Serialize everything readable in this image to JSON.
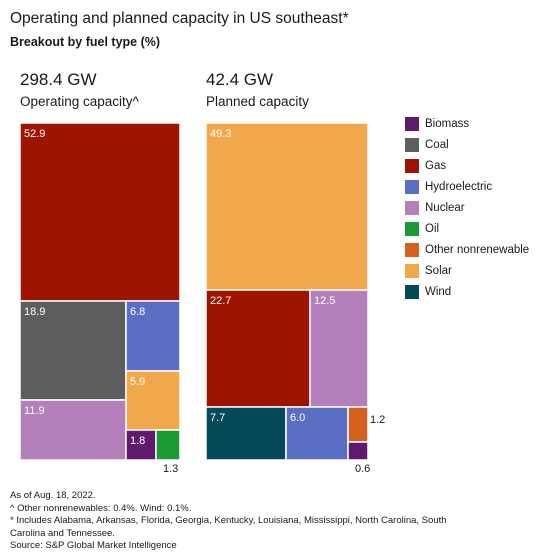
{
  "title": "Operating and planned capacity in US southeast*",
  "subtitle": "Breakout by fuel type (%)",
  "colors": {
    "Biomass": "#5f1a6e",
    "Coal": "#5e5e5e",
    "Gas": "#9e1400",
    "Hydroelectric": "#5a6fc4",
    "Nuclear": "#b47fbb",
    "Oil": "#1c9a35",
    "Other nonrenewable": "#d6601e",
    "Solar": "#f0a84a",
    "Wind": "#054a5a"
  },
  "legend": [
    "Biomass",
    "Coal",
    "Gas",
    "Hydroelectric",
    "Nuclear",
    "Oil",
    "Other nonrenewable",
    "Solar",
    "Wind"
  ],
  "chart_data": [
    {
      "type": "treemap",
      "total": "298.4 GW",
      "label": "Operating capacity^",
      "values": [
        {
          "name": "Gas",
          "value": 52.9,
          "label": "52.9"
        },
        {
          "name": "Coal",
          "value": 18.9,
          "label": "18.9"
        },
        {
          "name": "Hydroelectric",
          "value": 6.8,
          "label": "6.8"
        },
        {
          "name": "Solar",
          "value": 5.9,
          "label": "5.9"
        },
        {
          "name": "Nuclear",
          "value": 11.9,
          "label": "11.9"
        },
        {
          "name": "Biomass",
          "value": 1.8,
          "label": "1.8"
        },
        {
          "name": "Oil",
          "value": 1.3,
          "label": "1.3"
        }
      ]
    },
    {
      "type": "treemap",
      "total": "42.4 GW",
      "label": "Planned capacity",
      "values": [
        {
          "name": "Solar",
          "value": 49.3,
          "label": "49.3"
        },
        {
          "name": "Gas",
          "value": 22.7,
          "label": "22.7"
        },
        {
          "name": "Nuclear",
          "value": 12.5,
          "label": "12.5"
        },
        {
          "name": "Wind",
          "value": 7.7,
          "label": "7.7"
        },
        {
          "name": "Hydroelectric",
          "value": 6.0,
          "label": "6.0"
        },
        {
          "name": "Other nonrenewable",
          "value": 1.2,
          "label": "1.2"
        },
        {
          "name": "Biomass",
          "value": 0.6,
          "label": "0.6"
        }
      ]
    }
  ],
  "notes": [
    "As of Aug. 18, 2022.",
    "^ Other nonrenewables: 0.4%. Wind: 0.1%.",
    "* Includes Alabama, Arkansas, Florida, Georgia, Kentucky, Louisiana, Mississippi, North Carolina, South Carolina and Tennessee.",
    "Source: S&P Global Market Intelligence"
  ]
}
